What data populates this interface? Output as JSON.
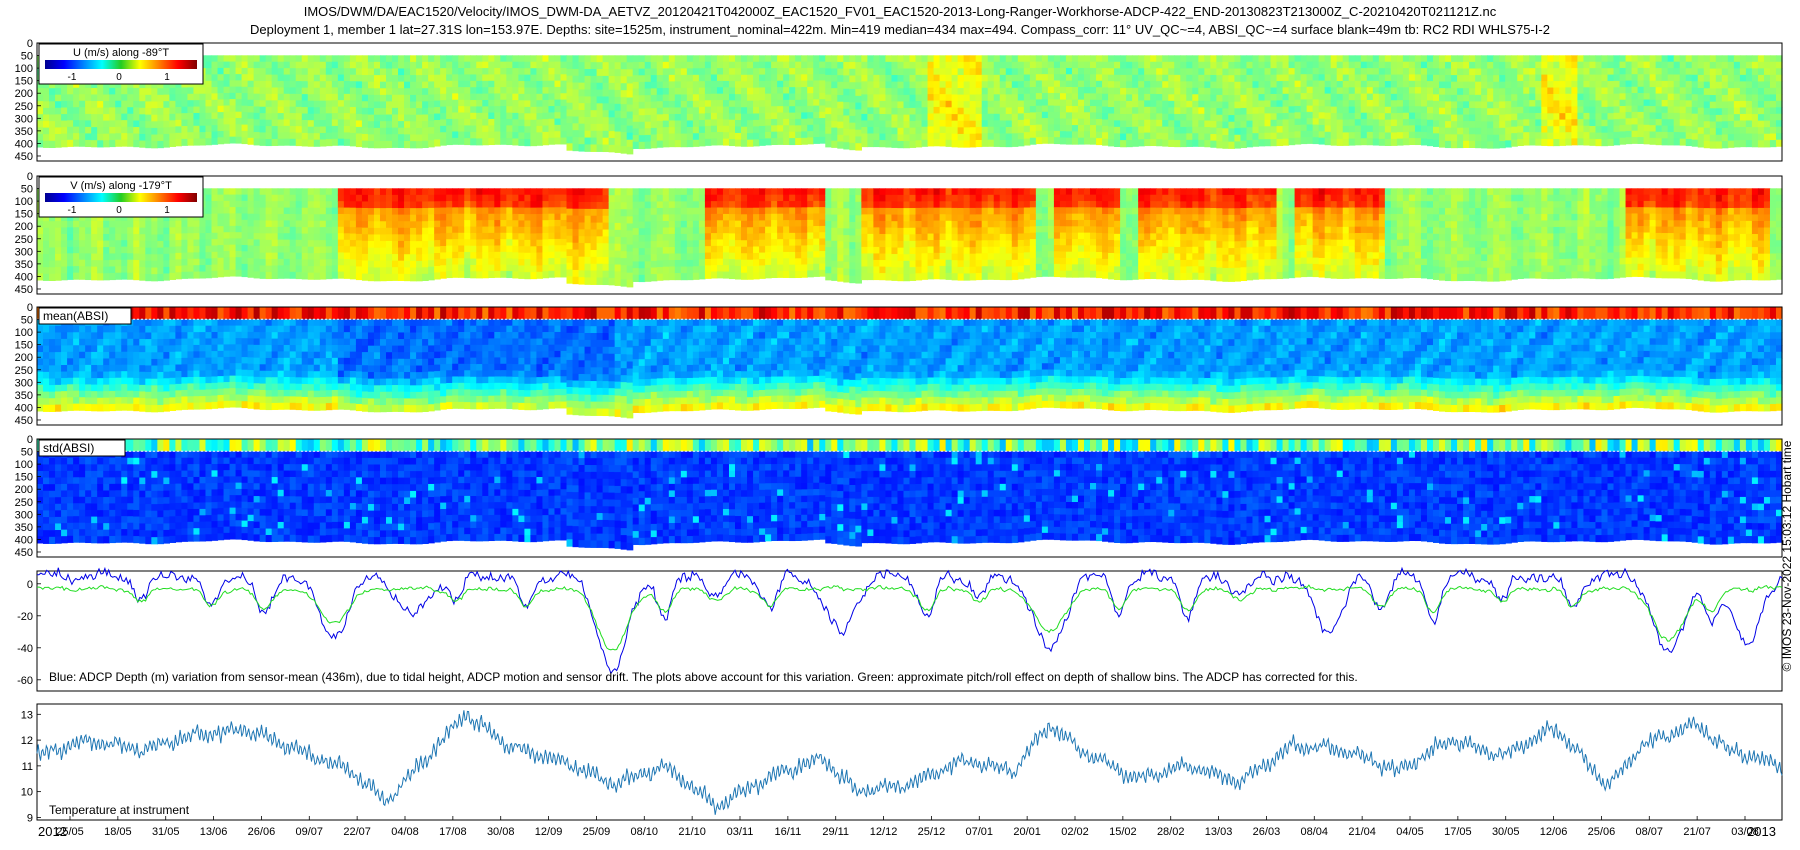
{
  "title_line1": "IMOS/DWM/DA/EAC1520/Velocity/IMOS_DWM-DA_AETVZ_20120421T042000Z_EAC1520_FV01_EAC1520-2013-Long-Ranger-Workhorse-ADCP-422_END-20130823T213000Z_C-20210420T021121Z.nc",
  "title_line2": "Deployment 1, member 1 lat=27.31S lon=153.97E. Depths: site=1525m, instrument_nominal=422m. Min=419 median=434 max=494. Compass_corr: 11° UV_QC~=4, ABSI_QC~=4 surface blank=49m tb: RC2 RDI WHLS75-I-2",
  "credit": "© IMOS 23-Nov-2022 15:03:12 Hobart time",
  "colors": {
    "blue_line": "#0000e6",
    "green_line": "#22dd22",
    "temp_line": "#1f77b4"
  },
  "chart_data": [
    {
      "type": "heatmap",
      "panel": "U",
      "legend_label": "U (m/s) along -89°T",
      "colorbar_ticks": [
        "-1",
        "0",
        "1"
      ],
      "y_ticks": [
        "0",
        "50",
        "100",
        "150",
        "200",
        "250",
        "300",
        "350",
        "400",
        "450"
      ],
      "ylim": [
        0,
        470
      ],
      "value_range": [
        -1.6,
        1.6
      ],
      "colormap": "jet",
      "dominant_value": 0.1
    },
    {
      "type": "heatmap",
      "panel": "V",
      "legend_label": "V (m/s) along -179°T",
      "colorbar_ticks": [
        "-1",
        "0",
        "1"
      ],
      "y_ticks": [
        "0",
        "50",
        "100",
        "150",
        "200",
        "250",
        "300",
        "350",
        "400",
        "450"
      ],
      "ylim": [
        0,
        470
      ],
      "value_range": [
        -1.6,
        1.6
      ],
      "colormap": "jet",
      "strong_southward_periods": [
        "09/07-25/09",
        "21/10-16/11",
        "29/11-07/01",
        "02/02-13/03",
        "08/04-17/05",
        "08/07-21/07"
      ]
    },
    {
      "type": "heatmap",
      "panel": "mean(ABSI)",
      "legend_label": "mean(ABSI)",
      "y_ticks": [
        "0",
        "50",
        "100",
        "150",
        "200",
        "250",
        "300",
        "350",
        "400",
        "450"
      ],
      "ylim": [
        0,
        470
      ],
      "colormap": "jet"
    },
    {
      "type": "heatmap",
      "panel": "std(ABSI)",
      "legend_label": "std(ABSI)",
      "y_ticks": [
        "0",
        "50",
        "100",
        "150",
        "200",
        "250",
        "300",
        "350",
        "400",
        "450"
      ],
      "ylim": [
        0,
        470
      ],
      "colormap": "jet"
    },
    {
      "type": "line",
      "panel": "depth",
      "annotation": "Blue: ADCP Depth (m) variation from sensor-mean (436m), due to tidal height, ADCP motion and sensor drift. The plots above account for this variation. Green: approximate pitch/roll effect on depth of shallow bins. The ADCP has corrected for this.",
      "y_ticks": [
        "0",
        "-20",
        "-40",
        "-60"
      ],
      "ylim": [
        -67,
        8
      ],
      "series": [
        {
          "color": "#0000e6",
          "baseline": 5,
          "dips": [
            [
              0.17,
              -32
            ],
            [
              0.215,
              -20
            ],
            [
              0.33,
              -55
            ],
            [
              0.46,
              -30
            ],
            [
              0.58,
              -42
            ],
            [
              0.74,
              -28
            ],
            [
              0.935,
              -44
            ],
            [
              0.98,
              -35
            ]
          ]
        },
        {
          "color": "#22dd22",
          "baseline": -3,
          "dips": [
            [
              0.17,
              -24
            ],
            [
              0.33,
              -42
            ],
            [
              0.58,
              -30
            ],
            [
              0.935,
              -36
            ]
          ]
        }
      ]
    },
    {
      "type": "line",
      "panel": "temperature",
      "annotation": "Temperature at instrument",
      "y_ticks": [
        "9",
        "10",
        "11",
        "12",
        "13"
      ],
      "ylim": [
        8.9,
        13.4
      ],
      "anchors": [
        [
          0,
          11.4
        ],
        [
          0.03,
          12.0
        ],
        [
          0.06,
          11.6
        ],
        [
          0.09,
          12.2
        ],
        [
          0.12,
          12.4
        ],
        [
          0.15,
          11.6
        ],
        [
          0.18,
          10.8
        ],
        [
          0.2,
          9.6
        ],
        [
          0.23,
          11.8
        ],
        [
          0.245,
          13.0
        ],
        [
          0.27,
          11.8
        ],
        [
          0.3,
          11.2
        ],
        [
          0.33,
          10.3
        ],
        [
          0.36,
          11.0
        ],
        [
          0.39,
          9.4
        ],
        [
          0.42,
          10.6
        ],
        [
          0.45,
          11.3
        ],
        [
          0.47,
          10.0
        ],
        [
          0.5,
          10.3
        ],
        [
          0.53,
          11.2
        ],
        [
          0.56,
          10.8
        ],
        [
          0.58,
          12.6
        ],
        [
          0.6,
          11.5
        ],
        [
          0.63,
          10.5
        ],
        [
          0.66,
          11.0
        ],
        [
          0.69,
          10.4
        ],
        [
          0.72,
          11.8
        ],
        [
          0.75,
          11.6
        ],
        [
          0.78,
          10.8
        ],
        [
          0.81,
          12.0
        ],
        [
          0.84,
          11.4
        ],
        [
          0.87,
          12.5
        ],
        [
          0.9,
          10.2
        ],
        [
          0.92,
          11.8
        ],
        [
          0.95,
          12.6
        ],
        [
          0.97,
          11.6
        ],
        [
          1.0,
          11.0
        ]
      ]
    }
  ],
  "x_axis": {
    "year_start": "2012",
    "year_end": "2013",
    "tick_labels": [
      "25/05",
      "18/05",
      "31/05",
      "13/06",
      "26/06",
      "09/07",
      "22/07",
      "04/08",
      "17/08",
      "30/08",
      "12/09",
      "25/09",
      "08/10",
      "21/10",
      "03/11",
      "16/11",
      "29/11",
      "12/12",
      "25/12",
      "07/01",
      "20/01",
      "02/02",
      "15/02",
      "28/02",
      "13/03",
      "26/03",
      "08/04",
      "21/04",
      "04/05",
      "17/05",
      "30/05",
      "12/06",
      "25/06",
      "08/07",
      "21/07",
      "03/08"
    ]
  }
}
